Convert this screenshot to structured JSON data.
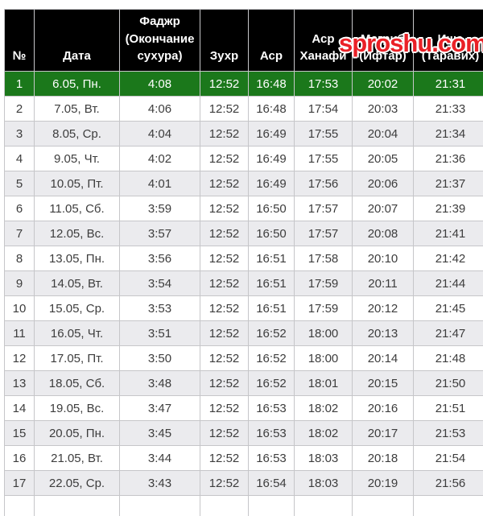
{
  "watermark": {
    "text": "sproshu.com",
    "color": "#ea2127"
  },
  "chart_data": {
    "type": "table",
    "columns": [
      [
        "№"
      ],
      [
        "Дата"
      ],
      [
        "Фаджр",
        "(Окончание",
        "сухура)"
      ],
      [
        "Зухр"
      ],
      [
        "Аср"
      ],
      [
        "Аср",
        "Ханафи"
      ],
      [
        "Магриб",
        "(Ифтар)"
      ],
      [
        "Иша",
        "(Таравих)"
      ]
    ],
    "highlight_row": 0,
    "rows": [
      [
        "1",
        "6.05, Пн.",
        "4:08",
        "12:52",
        "16:48",
        "17:53",
        "20:02",
        "21:31"
      ],
      [
        "2",
        "7.05, Вт.",
        "4:06",
        "12:52",
        "16:48",
        "17:54",
        "20:03",
        "21:33"
      ],
      [
        "3",
        "8.05, Ср.",
        "4:04",
        "12:52",
        "16:49",
        "17:55",
        "20:04",
        "21:34"
      ],
      [
        "4",
        "9.05, Чт.",
        "4:02",
        "12:52",
        "16:49",
        "17:55",
        "20:05",
        "21:36"
      ],
      [
        "5",
        "10.05, Пт.",
        "4:01",
        "12:52",
        "16:49",
        "17:56",
        "20:06",
        "21:37"
      ],
      [
        "6",
        "11.05, Сб.",
        "3:59",
        "12:52",
        "16:50",
        "17:57",
        "20:07",
        "21:39"
      ],
      [
        "7",
        "12.05, Вс.",
        "3:57",
        "12:52",
        "16:50",
        "17:57",
        "20:08",
        "21:41"
      ],
      [
        "8",
        "13.05, Пн.",
        "3:56",
        "12:52",
        "16:51",
        "17:58",
        "20:10",
        "21:42"
      ],
      [
        "9",
        "14.05, Вт.",
        "3:54",
        "12:52",
        "16:51",
        "17:59",
        "20:11",
        "21:44"
      ],
      [
        "10",
        "15.05, Ср.",
        "3:53",
        "12:52",
        "16:51",
        "17:59",
        "20:12",
        "21:45"
      ],
      [
        "11",
        "16.05, Чт.",
        "3:51",
        "12:52",
        "16:52",
        "18:00",
        "20:13",
        "21:47"
      ],
      [
        "12",
        "17.05, Пт.",
        "3:50",
        "12:52",
        "16:52",
        "18:00",
        "20:14",
        "21:48"
      ],
      [
        "13",
        "18.05, Сб.",
        "3:48",
        "12:52",
        "16:52",
        "18:01",
        "20:15",
        "21:50"
      ],
      [
        "14",
        "19.05, Вс.",
        "3:47",
        "12:52",
        "16:53",
        "18:02",
        "20:16",
        "21:51"
      ],
      [
        "15",
        "20.05, Пн.",
        "3:45",
        "12:52",
        "16:53",
        "18:02",
        "20:17",
        "21:53"
      ],
      [
        "16",
        "21.05, Вт.",
        "3:44",
        "12:52",
        "16:53",
        "18:03",
        "20:18",
        "21:54"
      ],
      [
        "17",
        "22.05, Ср.",
        "3:43",
        "12:52",
        "16:54",
        "18:03",
        "20:19",
        "21:56"
      ]
    ]
  },
  "colors": {
    "header_bg": "#000000",
    "header_text": "#ffffff",
    "highlight_bg": "#1b781b",
    "highlight_text": "#ffffff",
    "stripe_bg": "#ebebee",
    "row_bg": "#ffffff",
    "border": "#c6c6c9",
    "text": "#3d3d3d",
    "watermark_red": "#ea2127"
  }
}
